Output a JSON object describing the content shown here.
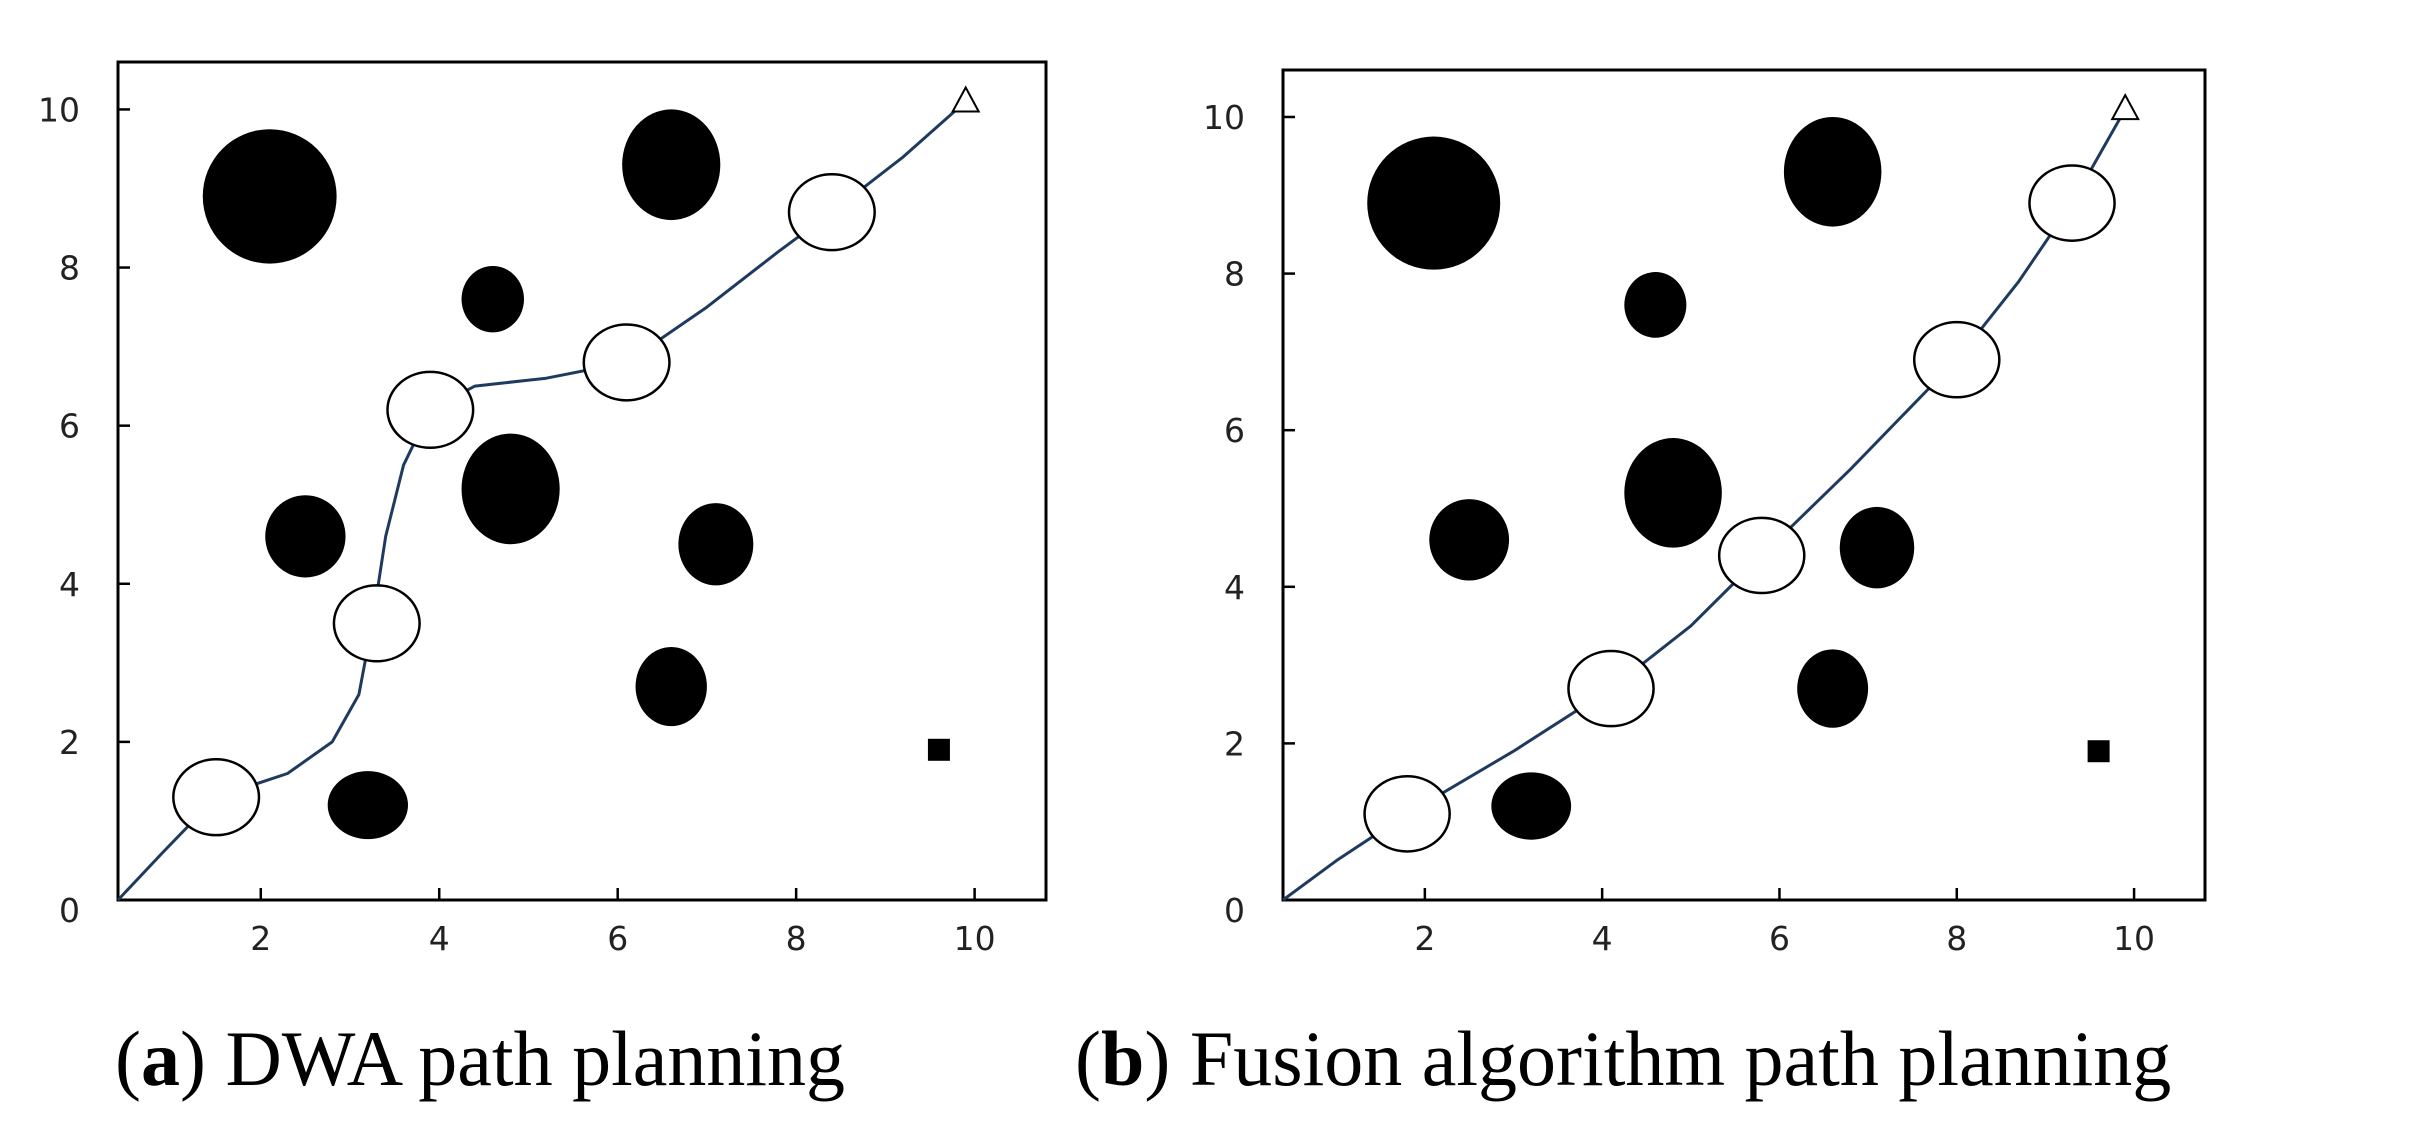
{
  "chart_data": [
    {
      "type": "scatter",
      "panel_letter": "a",
      "caption": "DWA path planning",
      "xlim": [
        0.4,
        10.8
      ],
      "ylim": [
        0,
        10.6
      ],
      "x_ticks": [
        2,
        4,
        6,
        8,
        10
      ],
      "y_ticks": [
        0,
        2,
        4,
        6,
        8,
        10
      ],
      "grid": false,
      "colors": {
        "path": "#1f3a5f",
        "obstacle": "#000000",
        "robot": "#ffffff"
      },
      "obstacles": [
        {
          "x": 2.1,
          "y": 8.9,
          "rx": 0.75,
          "ry": 0.85
        },
        {
          "x": 6.6,
          "y": 9.3,
          "rx": 0.55,
          "ry": 0.7
        },
        {
          "x": 4.6,
          "y": 7.6,
          "rx": 0.35,
          "ry": 0.42
        },
        {
          "x": 4.8,
          "y": 5.2,
          "rx": 0.55,
          "ry": 0.7
        },
        {
          "x": 2.5,
          "y": 4.6,
          "rx": 0.45,
          "ry": 0.52
        },
        {
          "x": 7.1,
          "y": 4.5,
          "rx": 0.42,
          "ry": 0.52
        },
        {
          "x": 6.6,
          "y": 2.7,
          "rx": 0.4,
          "ry": 0.5
        },
        {
          "x": 3.2,
          "y": 1.2,
          "rx": 0.45,
          "ry": 0.43
        }
      ],
      "robot_positions": [
        {
          "x": 1.5,
          "y": 1.3
        },
        {
          "x": 3.3,
          "y": 3.5
        },
        {
          "x": 3.9,
          "y": 6.2
        },
        {
          "x": 6.1,
          "y": 6.8
        },
        {
          "x": 8.4,
          "y": 8.7
        }
      ],
      "robot_radius": 0.48,
      "path": [
        [
          0.4,
          0
        ],
        [
          0.9,
          0.6
        ],
        [
          1.5,
          1.3
        ],
        [
          2.3,
          1.6
        ],
        [
          2.8,
          2.0
        ],
        [
          3.1,
          2.6
        ],
        [
          3.25,
          3.5
        ],
        [
          3.4,
          4.6
        ],
        [
          3.6,
          5.5
        ],
        [
          3.9,
          6.2
        ],
        [
          4.4,
          6.5
        ],
        [
          5.2,
          6.6
        ],
        [
          6.1,
          6.8
        ],
        [
          7.0,
          7.5
        ],
        [
          7.8,
          8.2
        ],
        [
          8.4,
          8.7
        ],
        [
          9.2,
          9.4
        ],
        [
          9.9,
          10.1
        ]
      ],
      "goal": {
        "x": 9.9,
        "y": 10.1
      },
      "start_marker": {
        "x": 9.6,
        "y": 1.9
      }
    },
    {
      "type": "scatter",
      "panel_letter": "b",
      "caption": "Fusion algorithm path planning",
      "xlim": [
        0.4,
        10.8
      ],
      "ylim": [
        0,
        10.6
      ],
      "x_ticks": [
        2,
        4,
        6,
        8,
        10
      ],
      "y_ticks": [
        0,
        2,
        4,
        6,
        8,
        10
      ],
      "grid": false,
      "colors": {
        "path": "#1f3a5f",
        "obstacle": "#000000",
        "robot": "#ffffff"
      },
      "obstacles": [
        {
          "x": 2.1,
          "y": 8.9,
          "rx": 0.75,
          "ry": 0.85
        },
        {
          "x": 6.6,
          "y": 9.3,
          "rx": 0.55,
          "ry": 0.7
        },
        {
          "x": 4.6,
          "y": 7.6,
          "rx": 0.35,
          "ry": 0.42
        },
        {
          "x": 4.8,
          "y": 5.2,
          "rx": 0.55,
          "ry": 0.7
        },
        {
          "x": 2.5,
          "y": 4.6,
          "rx": 0.45,
          "ry": 0.52
        },
        {
          "x": 7.1,
          "y": 4.5,
          "rx": 0.42,
          "ry": 0.52
        },
        {
          "x": 6.6,
          "y": 2.7,
          "rx": 0.4,
          "ry": 0.5
        },
        {
          "x": 3.2,
          "y": 1.2,
          "rx": 0.45,
          "ry": 0.43
        }
      ],
      "robot_positions": [
        {
          "x": 1.8,
          "y": 1.1
        },
        {
          "x": 4.1,
          "y": 2.7
        },
        {
          "x": 5.8,
          "y": 4.4
        },
        {
          "x": 8.0,
          "y": 6.9
        },
        {
          "x": 9.3,
          "y": 8.9
        }
      ],
      "robot_radius": 0.48,
      "path": [
        [
          0.4,
          0
        ],
        [
          1.0,
          0.5
        ],
        [
          1.8,
          1.1
        ],
        [
          3.0,
          1.9
        ],
        [
          4.1,
          2.7
        ],
        [
          5.0,
          3.5
        ],
        [
          5.8,
          4.4
        ],
        [
          6.8,
          5.5
        ],
        [
          8.0,
          6.9
        ],
        [
          8.7,
          7.9
        ],
        [
          9.3,
          8.9
        ],
        [
          9.9,
          10.1
        ]
      ],
      "goal": {
        "x": 9.9,
        "y": 10.1
      },
      "start_marker": {
        "x": 9.6,
        "y": 1.9
      }
    }
  ]
}
